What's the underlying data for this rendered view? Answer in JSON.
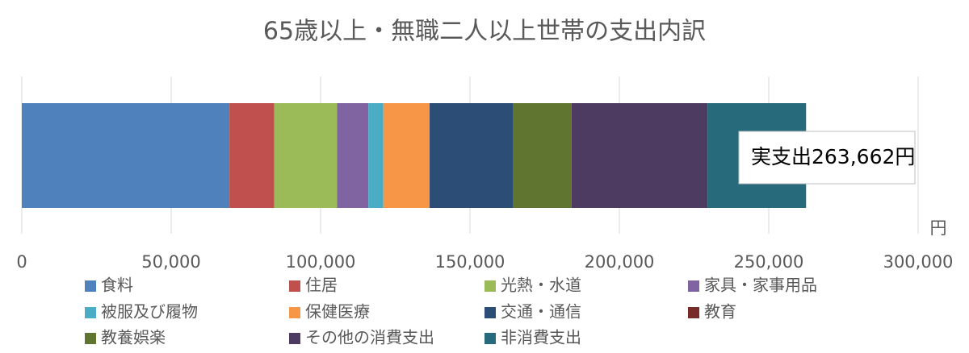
{
  "chart_data": {
    "type": "stacked_bar_horizontal",
    "title": "65歳以上・無職二人以上世帯の支出内訳",
    "series": [
      {
        "name": "食料",
        "color": "#4f81bd",
        "values": [
          69500
        ]
      },
      {
        "name": "住居",
        "color": "#c0504d",
        "values": [
          15000
        ]
      },
      {
        "name": "光熱・水道",
        "color": "#9bbb59",
        "values": [
          21000
        ]
      },
      {
        "name": "家具・家事用品",
        "color": "#8064a2",
        "values": [
          10500
        ]
      },
      {
        "name": "被服及び履物",
        "color": "#4bacc6",
        "values": [
          5000
        ]
      },
      {
        "name": "保健医療",
        "color": "#f79646",
        "values": [
          15500
        ]
      },
      {
        "name": "交通・通信",
        "color": "#2c4d75",
        "values": [
          28000
        ]
      },
      {
        "name": "教育",
        "color": "#772c2a",
        "values": [
          0
        ]
      },
      {
        "name": "教養娯楽",
        "color": "#5f7530",
        "values": [
          19500
        ]
      },
      {
        "name": "その他の消費支出",
        "color": "#4d3b62",
        "values": [
          45500
        ]
      },
      {
        "name": "非消費支出",
        "color": "#276a7c",
        "values": [
          33000
        ]
      }
    ],
    "annotation": "実支出263,662円",
    "x_unit_label": "円",
    "xlim": [
      0,
      300000
    ],
    "xticks": [
      0,
      {
        "value": 50000,
        "label": "50,000"
      },
      {
        "value": 100000,
        "label": "100,000"
      },
      {
        "value": 150000,
        "label": "150,000"
      },
      {
        "value": 200000,
        "label": "200,000"
      },
      {
        "value": 250000,
        "label": "250,000"
      },
      {
        "value": 300000,
        "label": "300,000"
      }
    ],
    "grid": true,
    "legend": "bottom"
  }
}
